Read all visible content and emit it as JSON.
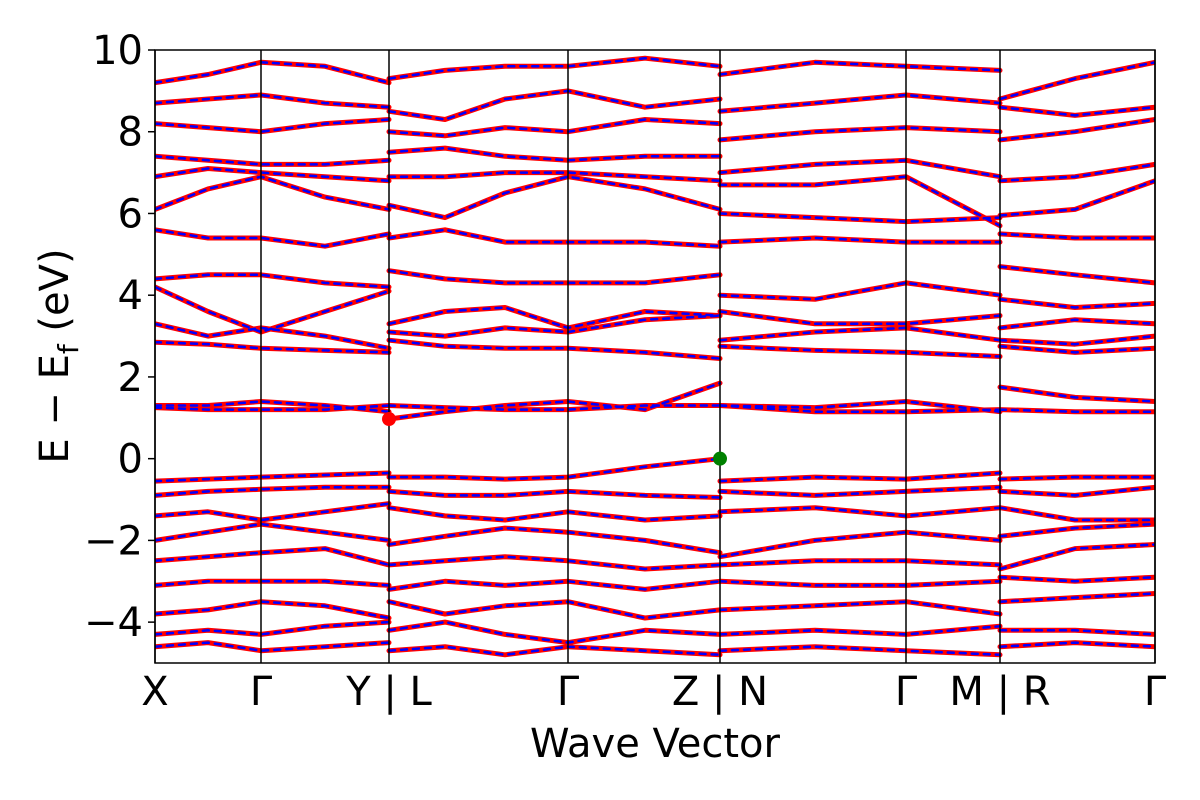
{
  "chart_data": {
    "type": "band-structure",
    "xlabel": "Wave Vector",
    "ylabel": [
      "E − E",
      "f",
      " (eV)"
    ],
    "xlim": [
      0,
      1000
    ],
    "ylim": [
      -5,
      10
    ],
    "yticks": [
      {
        "value": -4,
        "label": "−4"
      },
      {
        "value": -2,
        "label": "−2"
      },
      0,
      2,
      4,
      6,
      8,
      10
    ],
    "xticks": [
      {
        "value": 0,
        "label": "X"
      },
      {
        "value": 106,
        "label": "Γ"
      },
      {
        "value": 234,
        "label": "Y | L"
      },
      {
        "value": 413,
        "label": "Γ"
      },
      {
        "value": 565,
        "label": "Z | N"
      },
      {
        "value": 751,
        "label": "Γ"
      },
      {
        "value": 845,
        "label": "M | R"
      },
      {
        "value": 1000,
        "label": "Γ"
      }
    ],
    "color": "#ff0000",
    "dash_color": "#0000ff",
    "x": [
      0,
      53,
      106,
      170,
      234,
      234,
      234,
      290,
      350,
      413,
      490,
      565,
      565,
      565,
      660,
      751,
      845,
      845,
      845,
      920,
      1000
    ],
    "series": [
      {
        "values": [
          1.3,
          1.3,
          1.4,
          1.3,
          1.15,
          null,
          0.97,
          1.15,
          1.3,
          1.4,
          1.2,
          1.85,
          null,
          1.3,
          1.25,
          1.4,
          1.15,
          null,
          1.75,
          1.5,
          1.4
        ]
      },
      {
        "values": [
          1.25,
          1.2,
          1.2,
          1.2,
          1.3,
          null,
          1.3,
          1.25,
          1.2,
          1.2,
          1.3,
          1.3,
          null,
          1.3,
          1.15,
          1.15,
          1.2,
          null,
          1.2,
          1.15,
          1.15
        ]
      },
      {
        "values": [
          2.85,
          2.8,
          2.7,
          2.65,
          2.6,
          null,
          2.9,
          2.75,
          2.7,
          2.7,
          2.6,
          2.45,
          null,
          2.75,
          2.65,
          2.6,
          2.5,
          null,
          2.75,
          2.6,
          2.7
        ]
      },
      {
        "values": [
          3.3,
          3.0,
          3.2,
          3.0,
          2.7,
          null,
          3.1,
          3.0,
          3.2,
          3.1,
          3.4,
          3.5,
          null,
          2.9,
          3.1,
          3.2,
          2.9,
          null,
          2.9,
          2.8,
          3.0
        ]
      },
      {
        "values": [
          4.2,
          3.6,
          3.1,
          3.6,
          4.1,
          null,
          3.3,
          3.6,
          3.7,
          3.2,
          3.6,
          3.5,
          null,
          3.6,
          3.3,
          3.3,
          3.5,
          null,
          3.2,
          3.4,
          3.3
        ]
      },
      {
        "values": [
          4.4,
          4.5,
          4.5,
          4.3,
          4.2,
          null,
          4.6,
          4.4,
          4.3,
          4.3,
          4.3,
          4.5,
          null,
          4.0,
          3.9,
          4.3,
          4.0,
          null,
          3.9,
          3.7,
          3.8
        ]
      },
      {
        "values": [
          5.6,
          5.4,
          5.4,
          5.2,
          5.5,
          null,
          5.4,
          5.6,
          5.3,
          5.3,
          5.3,
          5.2,
          null,
          5.3,
          5.4,
          5.3,
          5.3,
          null,
          4.7,
          4.5,
          4.3
        ]
      },
      {
        "values": [
          6.1,
          6.6,
          6.9,
          6.4,
          6.1,
          null,
          6.2,
          5.9,
          6.5,
          6.9,
          6.6,
          6.1,
          null,
          6.0,
          5.9,
          5.8,
          5.9,
          null,
          5.5,
          5.4,
          5.4
        ]
      },
      {
        "values": [
          6.9,
          7.1,
          7.0,
          6.9,
          6.8,
          null,
          6.9,
          6.9,
          7.0,
          7.0,
          6.9,
          6.8,
          null,
          6.7,
          6.7,
          6.9,
          5.7,
          null,
          5.95,
          6.1,
          6.8
        ]
      },
      {
        "values": [
          7.4,
          7.3,
          7.2,
          7.2,
          7.3,
          null,
          7.5,
          7.6,
          7.4,
          7.3,
          7.4,
          7.4,
          null,
          7.0,
          7.2,
          7.3,
          6.9,
          null,
          6.8,
          6.9,
          7.2
        ]
      },
      {
        "values": [
          8.2,
          8.1,
          8.0,
          8.2,
          8.3,
          null,
          8.0,
          7.9,
          8.1,
          8.0,
          8.3,
          8.2,
          null,
          7.8,
          8.0,
          8.1,
          8.0,
          null,
          7.8,
          8.0,
          8.3
        ]
      },
      {
        "values": [
          8.7,
          8.8,
          8.9,
          8.7,
          8.6,
          null,
          8.5,
          8.3,
          8.8,
          9.0,
          8.6,
          8.8,
          null,
          8.5,
          8.7,
          8.9,
          8.7,
          null,
          8.6,
          8.4,
          8.6
        ]
      },
      {
        "values": [
          9.2,
          9.4,
          9.7,
          9.6,
          9.2,
          null,
          9.3,
          9.5,
          9.6,
          9.6,
          9.8,
          9.6,
          null,
          9.4,
          9.7,
          9.6,
          9.5,
          null,
          8.8,
          9.3,
          9.7
        ]
      },
      {
        "values": [
          -0.55,
          -0.5,
          -0.45,
          -0.4,
          -0.35,
          null,
          -0.45,
          -0.45,
          -0.5,
          -0.45,
          -0.2,
          0.0,
          null,
          -0.55,
          -0.45,
          -0.5,
          -0.35,
          null,
          -0.5,
          -0.45,
          -0.45
        ]
      },
      {
        "values": [
          -0.9,
          -0.8,
          -0.75,
          -0.7,
          -0.7,
          null,
          -0.8,
          -0.9,
          -0.9,
          -0.8,
          -0.9,
          -0.95,
          null,
          -0.8,
          -0.9,
          -0.8,
          -0.7,
          null,
          -0.8,
          -0.9,
          -0.7
        ]
      },
      {
        "values": [
          -1.4,
          -1.3,
          -1.5,
          -1.3,
          -1.1,
          null,
          -1.2,
          -1.4,
          -1.5,
          -1.3,
          -1.5,
          -1.4,
          null,
          -1.3,
          -1.2,
          -1.4,
          -1.2,
          null,
          -1.2,
          -1.5,
          -1.5
        ]
      },
      {
        "values": [
          -2.0,
          -1.8,
          -1.6,
          -1.8,
          -2.0,
          null,
          -2.1,
          -1.9,
          -1.7,
          -1.8,
          -2.0,
          -2.3,
          null,
          -2.4,
          -2.0,
          -1.8,
          -2.0,
          null,
          -1.9,
          -1.7,
          -1.6
        ]
      },
      {
        "values": [
          -2.5,
          -2.4,
          -2.3,
          -2.2,
          -2.6,
          null,
          -2.6,
          -2.5,
          -2.4,
          -2.5,
          -2.7,
          -2.6,
          null,
          -2.6,
          -2.5,
          -2.5,
          -2.6,
          null,
          -2.7,
          -2.2,
          -2.1
        ]
      },
      {
        "values": [
          -3.1,
          -3.0,
          -3.0,
          -3.0,
          -3.1,
          null,
          -3.2,
          -3.0,
          -3.1,
          -3.0,
          -3.2,
          -3.0,
          null,
          -3.0,
          -3.1,
          -3.1,
          -3.0,
          null,
          -2.9,
          -3.0,
          -2.9
        ]
      },
      {
        "values": [
          -3.8,
          -3.7,
          -3.5,
          -3.6,
          -3.9,
          null,
          -3.5,
          -3.8,
          -3.6,
          -3.5,
          -3.9,
          -3.7,
          null,
          -3.7,
          -3.6,
          -3.5,
          -3.8,
          null,
          -3.5,
          -3.4,
          -3.3
        ]
      },
      {
        "values": [
          -4.3,
          -4.2,
          -4.3,
          -4.1,
          -4.0,
          null,
          -4.2,
          -4.0,
          -4.3,
          -4.5,
          -4.2,
          -4.3,
          null,
          -4.3,
          -4.2,
          -4.3,
          -4.1,
          null,
          -4.2,
          -4.2,
          -4.3
        ]
      },
      {
        "values": [
          -4.6,
          -4.5,
          -4.7,
          -4.6,
          -4.5,
          null,
          -4.7,
          -4.6,
          -4.8,
          -4.6,
          -4.7,
          -4.8,
          null,
          -4.7,
          -4.6,
          -4.7,
          -4.8,
          null,
          -4.6,
          -4.5,
          -4.6
        ]
      }
    ],
    "points": [
      {
        "x": 234,
        "y": 0.97,
        "color": "#ff0000"
      },
      {
        "x": 565,
        "y": 0,
        "color": "#008000"
      }
    ]
  }
}
